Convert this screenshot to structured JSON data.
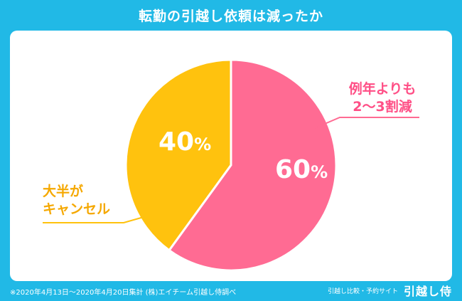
{
  "header": {
    "title": "転勤の引越し依頼は減ったか"
  },
  "footer": {
    "note": "※2020年4月13日〜2020年4月20日集計  (株)エイチーム引越し侍調べ",
    "service_label": "引越し比較・予約サイト",
    "brand": "引越し侍"
  },
  "colors": {
    "background": "#21b9e6",
    "pink": "#ff6b93",
    "yellow": "#ffc20e",
    "pink_text": "#ff4f86",
    "yellow_text": "#f5a800"
  },
  "chart_data": {
    "type": "pie",
    "slices": [
      {
        "label": "例年よりも 2〜3割減",
        "label_lines": [
          "例年よりも",
          "2〜3割減"
        ],
        "value": 60,
        "value_label": "60%",
        "color": "#ff6b93",
        "label_color": "#ff4f86"
      },
      {
        "label": "大半がキャンセル",
        "label_lines": [
          "大半が",
          "キャンセル"
        ],
        "value": 40,
        "value_label": "40%",
        "color": "#ffc20e",
        "label_color": "#f5a800"
      }
    ]
  }
}
